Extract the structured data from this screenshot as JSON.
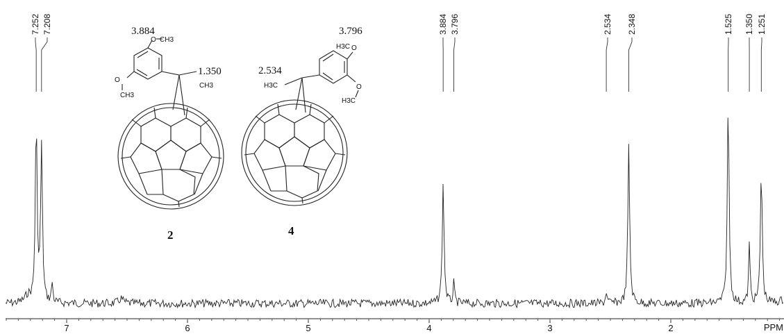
{
  "chart_data": {
    "type": "line",
    "title": "",
    "xlabel": "PPM",
    "ylabel": "",
    "x_reversed": true,
    "xlim": [
      7.55,
      0.95
    ],
    "x_ticks": [
      7,
      6,
      5,
      4,
      3,
      2
    ],
    "x_tick_labels": [
      "7",
      "6",
      "5",
      "4",
      "3",
      "2"
    ],
    "peak_labels": [
      "7.252",
      "7.208",
      "3.884",
      "3.796",
      "2.534",
      "2.348",
      "1.525",
      "1.350",
      "1.251"
    ],
    "peaks": [
      {
        "ppm": 7.252,
        "height": 0.91
      },
      {
        "ppm": 7.208,
        "height": 0.78
      },
      {
        "ppm": 7.12,
        "height": 0.1
      },
      {
        "ppm": 3.884,
        "height": 0.6
      },
      {
        "ppm": 3.796,
        "height": 0.1
      },
      {
        "ppm": 2.534,
        "height": 0.06
      },
      {
        "ppm": 2.348,
        "height": 0.79
      },
      {
        "ppm": 1.525,
        "height": 1.0
      },
      {
        "ppm": 1.35,
        "height": 0.3
      },
      {
        "ppm": 1.251,
        "height": 0.68
      }
    ]
  },
  "structures": {
    "compound_a": {
      "number": "2",
      "ome_top_shift": "3.884",
      "methyl_shift": "1.350",
      "atoms": {
        "o1": "O",
        "ch3_1": "CH3",
        "o2": "O",
        "ch3_2": "CH3",
        "ch3_3": "CH3"
      }
    },
    "compound_b": {
      "number": "4",
      "ome_top_shift": "3.796",
      "methyl_shift": "2.534",
      "atoms": {
        "h3c_1": "H3C",
        "o1": "O",
        "h3c_2": "H3C",
        "o2": "O",
        "h3c_3": "H3C"
      }
    }
  }
}
